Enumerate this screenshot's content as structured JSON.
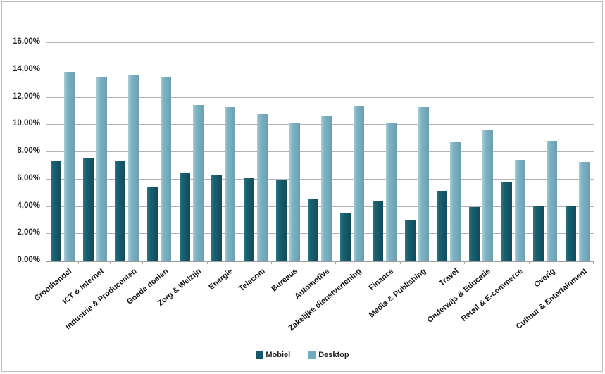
{
  "chart_data": {
    "type": "bar",
    "categories": [
      "Groothandel",
      "ICT & Internet",
      "Industrie & Producenten",
      "Goede doelen",
      "Zorg & Welzijn",
      "Energie",
      "Telecom",
      "Bureaus",
      "Automotive",
      "Zakelijke dienstverlening",
      "Finance",
      "Media & Publishing",
      "Travel",
      "Onderwijs & Educatie",
      "Retail & E-commerce",
      "Overig",
      "Cultuur & Entertainment"
    ],
    "series": [
      {
        "name": "Mobiel",
        "color": "#165c6e",
        "values": [
          7.3,
          7.55,
          7.35,
          5.35,
          6.4,
          6.25,
          6.05,
          5.95,
          4.5,
          3.5,
          4.35,
          3.0,
          5.1,
          3.9,
          5.75,
          4.05,
          3.95
        ]
      },
      {
        "name": "Desktop",
        "color": "#7db3c3",
        "values": [
          13.85,
          13.45,
          13.55,
          13.4,
          11.4,
          11.25,
          10.75,
          10.05,
          10.65,
          11.3,
          10.05,
          11.25,
          8.7,
          9.6,
          7.4,
          8.8,
          7.25
        ]
      }
    ],
    "y_axis": {
      "min": 0,
      "max": 16,
      "step": 2,
      "tick_labels": [
        "0,00%",
        "2,00%",
        "4,00%",
        "6,00%",
        "8,00%",
        "10,00%",
        "12,00%",
        "14,00%",
        "16,00%"
      ]
    },
    "xlabel": "",
    "ylabel": "",
    "grid": true,
    "legend_position": "bottom"
  }
}
